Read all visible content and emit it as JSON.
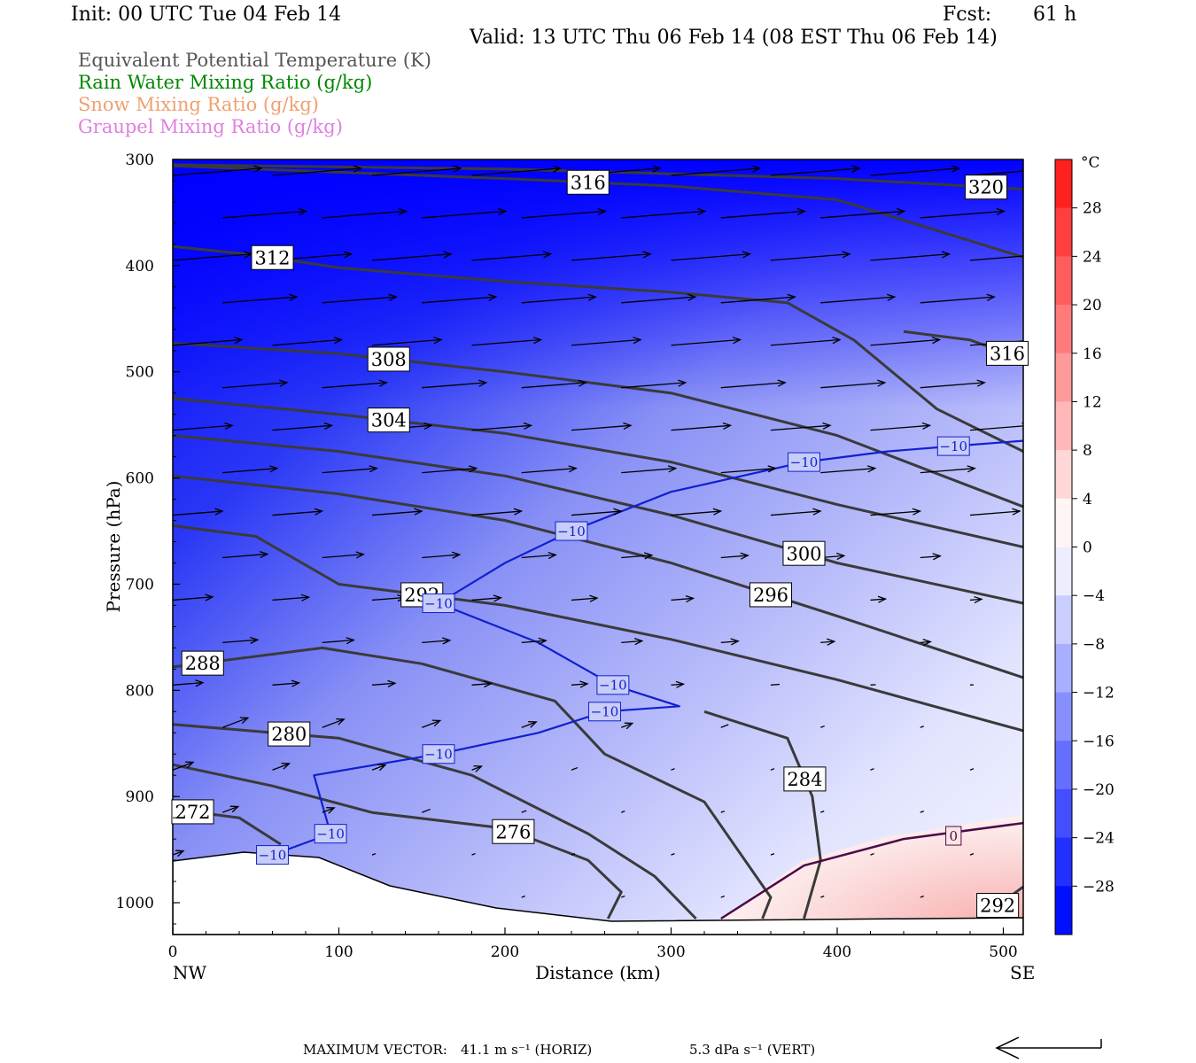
{
  "header": {
    "init": "Init: 00 UTC Tue 04 Feb 14",
    "fcst_label": "Fcst:",
    "fcst_value": "61 h",
    "valid": "Valid: 13 UTC Thu 06 Feb 14 (08 EST Thu 06 Feb 14)"
  },
  "legend": [
    {
      "text": "Equivalent Potential Temperature (K)",
      "color": "#555555"
    },
    {
      "text": "Rain Water Mixing Ratio (g/kg)",
      "color": "#008800"
    },
    {
      "text": "Snow Mixing Ratio (g/kg)",
      "color": "#f0a070"
    },
    {
      "text": "Graupel Mixing Ratio (g/kg)",
      "color": "#e080e0"
    }
  ],
  "chart_data": {
    "type": "cross-section",
    "ylabel": "Pressure (hPa)",
    "xlabel": "Distance (km)",
    "left_end_label": "NW",
    "right_end_label": "SE",
    "yticks": [
      "300",
      "400",
      "500",
      "600",
      "700",
      "800",
      "900",
      "1000"
    ],
    "xticks": [
      "0",
      "100",
      "200",
      "300",
      "400",
      "500"
    ],
    "ylim": [
      300,
      1030
    ],
    "xlim": [
      0,
      512
    ],
    "colorbar": {
      "unit": "°C",
      "labels": [
        "28",
        "24",
        "20",
        "16",
        "12",
        "8",
        "4",
        "0",
        "−4",
        "−8",
        "−12",
        "−16",
        "−20",
        "−24",
        "−28"
      ],
      "range": [
        -32,
        32
      ],
      "warm_color": "#ff2a2a",
      "cold_color": "#0010ff"
    },
    "theta_e_contours": [
      {
        "label": "316",
        "points": [
          [
            0,
            306
          ],
          [
            100,
            312
          ],
          [
            200,
            318
          ],
          [
            300,
            325
          ],
          [
            400,
            338
          ],
          [
            512,
            392
          ]
        ]
      },
      {
        "label": "320",
        "points": [
          [
            0,
            305
          ],
          [
            200,
            309
          ],
          [
            400,
            318
          ],
          [
            512,
            328
          ]
        ]
      },
      {
        "label": "312",
        "points": [
          [
            0,
            382
          ],
          [
            50,
            390
          ],
          [
            100,
            402
          ],
          [
            200,
            415
          ],
          [
            300,
            425
          ],
          [
            370,
            435
          ],
          [
            410,
            470
          ],
          [
            460,
            535
          ],
          [
            512,
            575
          ]
        ]
      },
      {
        "label": "316",
        "points": [
          [
            440,
            462
          ],
          [
            480,
            470
          ],
          [
            512,
            488
          ]
        ]
      },
      {
        "label": "308",
        "points": [
          [
            0,
            473
          ],
          [
            100,
            483
          ],
          [
            200,
            500
          ],
          [
            300,
            520
          ],
          [
            400,
            560
          ],
          [
            512,
            627
          ]
        ]
      },
      {
        "label": "304",
        "points": [
          [
            0,
            525
          ],
          [
            100,
            540
          ],
          [
            200,
            558
          ],
          [
            300,
            585
          ],
          [
            400,
            625
          ],
          [
            512,
            665
          ]
        ]
      },
      {
        "label": "300",
        "points": [
          [
            0,
            560
          ],
          [
            100,
            575
          ],
          [
            200,
            598
          ],
          [
            300,
            635
          ],
          [
            400,
            680
          ],
          [
            512,
            718
          ]
        ]
      },
      {
        "label": "296",
        "points": [
          [
            0,
            598
          ],
          [
            100,
            615
          ],
          [
            200,
            640
          ],
          [
            300,
            680
          ],
          [
            400,
            730
          ],
          [
            512,
            788
          ]
        ]
      },
      {
        "label": "292",
        "points": [
          [
            0,
            645
          ],
          [
            50,
            655
          ],
          [
            100,
            700
          ],
          [
            200,
            720
          ],
          [
            300,
            752
          ],
          [
            400,
            790
          ],
          [
            512,
            838
          ]
        ]
      },
      {
        "label": "288",
        "points": [
          [
            0,
            778
          ],
          [
            90,
            760
          ],
          [
            150,
            775
          ],
          [
            230,
            810
          ],
          [
            260,
            860
          ],
          [
            320,
            905
          ],
          [
            360,
            995
          ],
          [
            355,
            1015
          ]
        ]
      },
      {
        "label": "280",
        "points": [
          [
            0,
            832
          ],
          [
            100,
            845
          ],
          [
            180,
            880
          ],
          [
            250,
            935
          ],
          [
            290,
            975
          ],
          [
            315,
            1015
          ]
        ]
      },
      {
        "label": "276",
        "points": [
          [
            0,
            870
          ],
          [
            60,
            890
          ],
          [
            120,
            915
          ],
          [
            200,
            930
          ],
          [
            250,
            960
          ],
          [
            270,
            990
          ],
          [
            262,
            1015
          ]
        ]
      },
      {
        "label": "272",
        "points": [
          [
            0,
            912
          ],
          [
            40,
            920
          ],
          [
            65,
            945
          ]
        ]
      },
      {
        "label": "284",
        "points": [
          [
            320,
            820
          ],
          [
            370,
            845
          ],
          [
            385,
            900
          ],
          [
            390,
            960
          ],
          [
            380,
            1015
          ]
        ]
      },
      {
        "label": "292",
        "points": [
          [
            490,
            1010
          ],
          [
            512,
            985
          ]
        ]
      }
    ],
    "freezing_line": {
      "label": "0",
      "points": [
        [
          330,
          1015
        ],
        [
          380,
          965
        ],
        [
          440,
          940
        ],
        [
          512,
          925
        ]
      ]
    },
    "minus10_line": {
      "label": "−10",
      "points": [
        [
          60,
          955
        ],
        [
          95,
          935
        ],
        [
          85,
          880
        ],
        [
          160,
          860
        ],
        [
          220,
          840
        ],
        [
          260,
          820
        ],
        [
          305,
          815
        ],
        [
          265,
          795
        ],
        [
          220,
          755
        ],
        [
          160,
          718
        ],
        [
          200,
          680
        ],
        [
          240,
          650
        ],
        [
          300,
          613
        ],
        [
          380,
          585
        ],
        [
          430,
          575
        ],
        [
          470,
          570
        ],
        [
          512,
          565
        ]
      ]
    },
    "vector_info": {
      "label": "MAXIMUM VECTOR:",
      "horiz_value": "41.1 m s⁻¹ (HORIZ)",
      "vert_value": "5.3 dPa s⁻¹ (VERT)"
    }
  }
}
